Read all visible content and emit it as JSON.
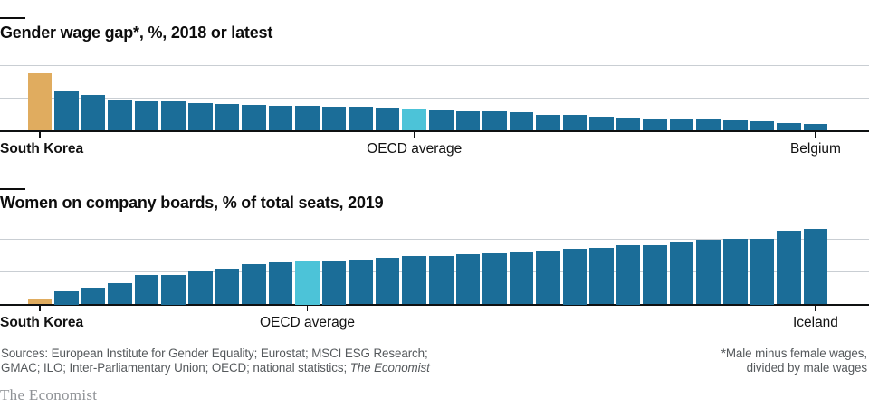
{
  "colors": {
    "bar_default": "#1b6d98",
    "bar_first_highlight": "#e0ac5f",
    "bar_oecd_highlight": "#4cc3d8",
    "gridline": "#c9ced3",
    "axis": "#0f1112",
    "text": "#121212",
    "muted_text": "#55595c",
    "brand_text": "#8f9296"
  },
  "chart_data": [
    {
      "type": "bar",
      "title": "Gender wage gap*, %, 2018 or latest",
      "ylim": [
        0,
        40
      ],
      "yticks": [
        40,
        20,
        0
      ],
      "grid": true,
      "ytick_side": "right",
      "order": "descending",
      "values": [
        34.5,
        24,
        21.5,
        18,
        17.8,
        17.5,
        16.5,
        16,
        15.2,
        15,
        14.8,
        14.6,
        14.4,
        14,
        13.5,
        12.4,
        11.8,
        11.6,
        10.8,
        9.6,
        9.2,
        8.2,
        7.6,
        7.4,
        7,
        6.6,
        5.8,
        5.6,
        4.6,
        3.6
      ],
      "first_highlight_index": 0,
      "oecd_highlight_index": 14,
      "labels": [
        {
          "index": 0,
          "text": "South Korea",
          "bold": true,
          "align": "left"
        },
        {
          "index": 14,
          "text": "OECD average",
          "align": "center"
        },
        {
          "index": 29,
          "text": "Belgium",
          "align": "center"
        }
      ]
    },
    {
      "type": "bar",
      "title": "Women on company boards, % of total seats, 2019",
      "ylim": [
        0,
        40
      ],
      "yticks": [
        40,
        20,
        0
      ],
      "grid": true,
      "ytick_side": "right",
      "order": "ascending",
      "values": [
        3.5,
        8,
        10.4,
        13,
        17.8,
        18,
        20.2,
        21.6,
        24.5,
        25.4,
        26,
        26.8,
        27.4,
        28.6,
        29.4,
        29.6,
        30.6,
        31.2,
        31.6,
        33,
        34,
        34.5,
        36,
        36.4,
        38.6,
        39.4,
        39.8,
        40,
        44.8,
        46.2
      ],
      "first_highlight_index": 0,
      "oecd_highlight_index": 10,
      "labels": [
        {
          "index": 0,
          "text": "South Korea",
          "bold": true,
          "align": "left"
        },
        {
          "index": 10,
          "text": "OECD average",
          "align": "center"
        },
        {
          "index": 29,
          "text": "Iceland",
          "align": "center"
        }
      ]
    }
  ],
  "footer": {
    "sources_line1": "Sources: European Institute for Gender Equality; Eurostat; MSCI ESG Research;",
    "sources_line2_prefix": "GMAC; ILO; Inter-Parliamentary Union; OECD; national statistics; ",
    "sources_line2_italic": "The Economist",
    "footnote_line1": "*Male minus female wages,",
    "footnote_line2": "divided by male wages"
  },
  "brand": "The Economist"
}
